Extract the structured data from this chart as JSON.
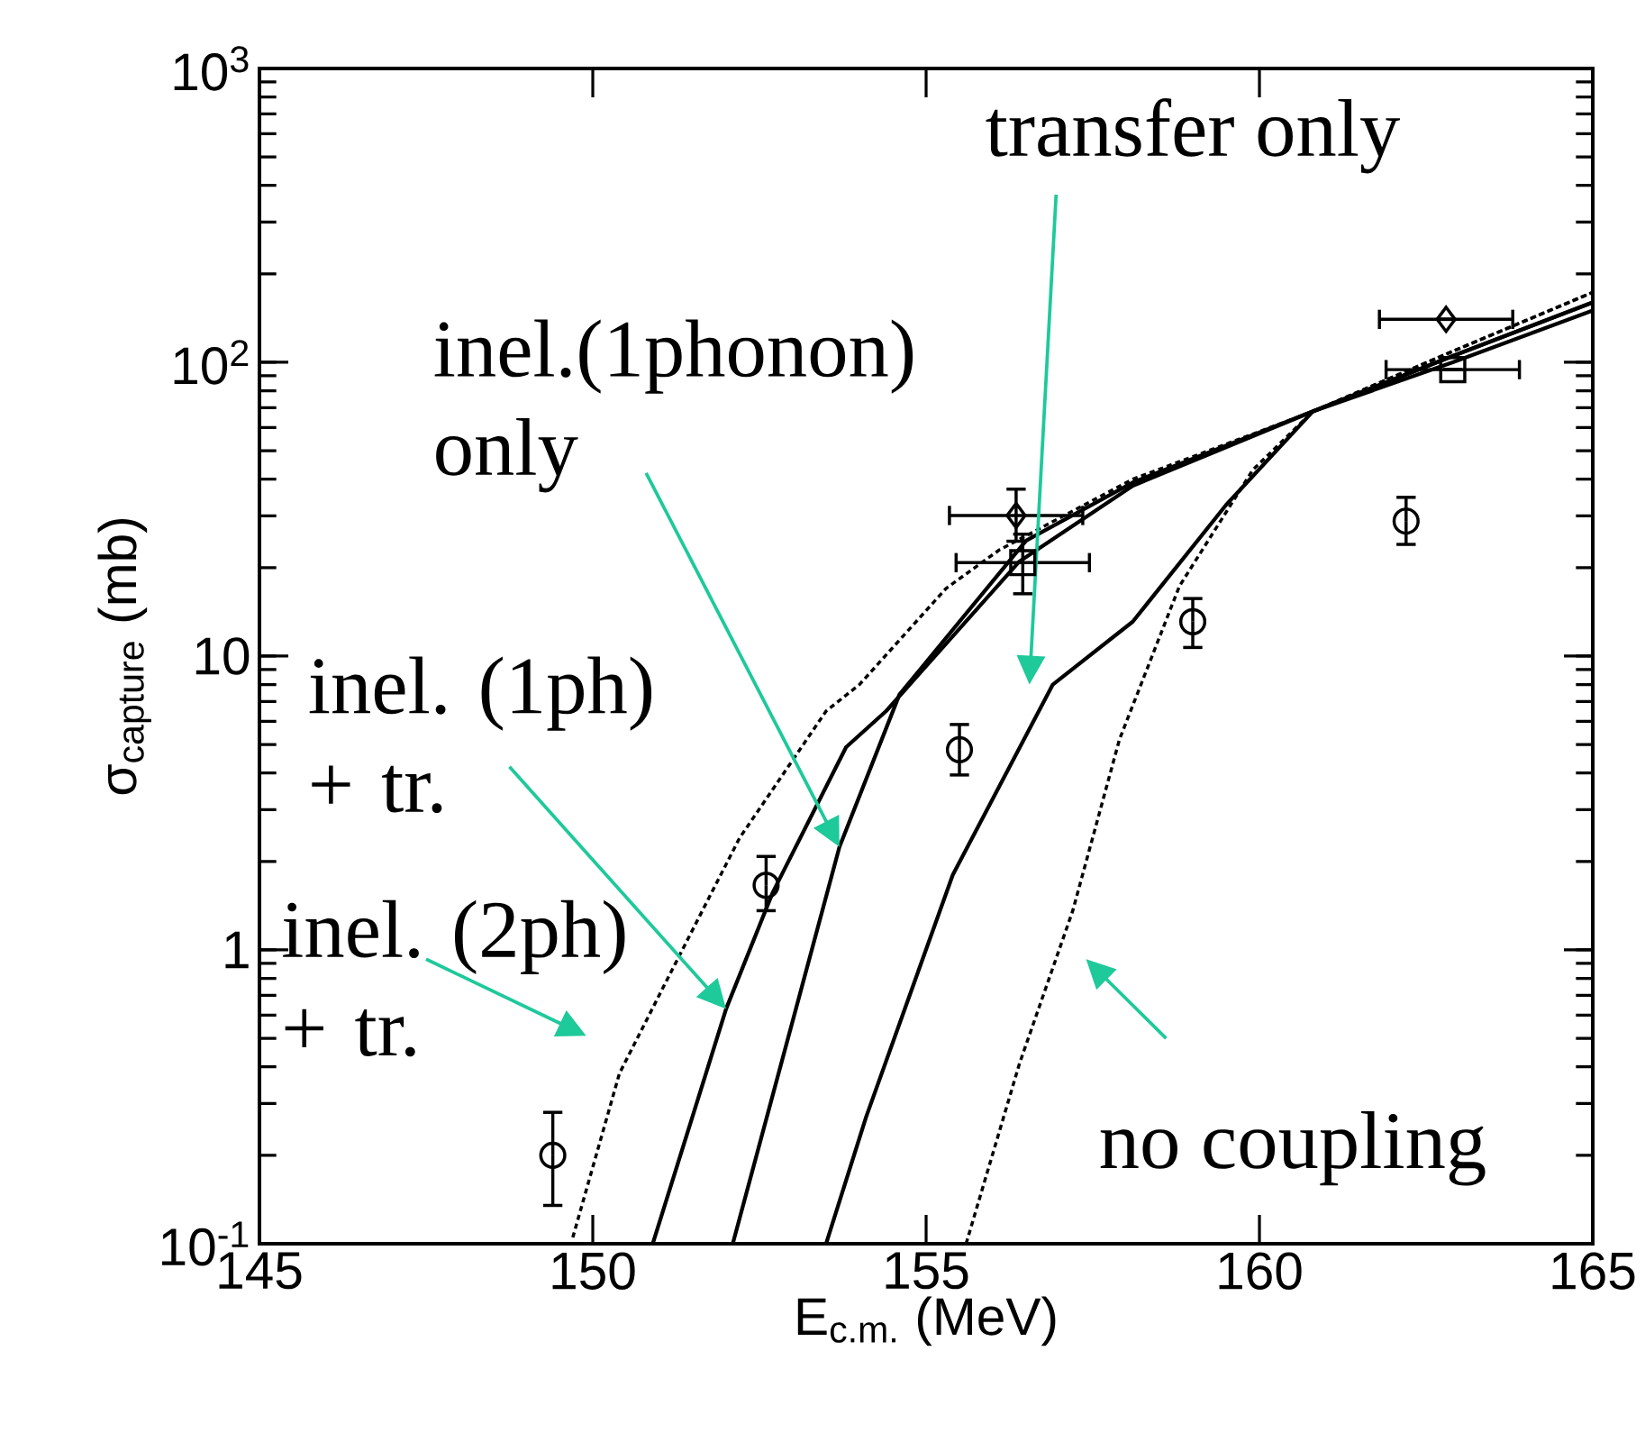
{
  "chart_data": {
    "type": "line",
    "xlabel": "E$_{c.m.}$ (MeV)",
    "ylabel": "σ$_{capture}$ (mb)",
    "xlim": [
      145,
      165
    ],
    "ylim": [
      0.1,
      1000
    ],
    "log": true,
    "xticks": [
      145,
      150,
      155,
      160,
      165
    ],
    "yticks": [
      {
        "value": 0.1,
        "label": "10$^{-1}$"
      },
      {
        "value": 1,
        "label": "1"
      },
      {
        "value": 10,
        "label": "10"
      },
      {
        "value": 100,
        "label": "10$^{2}$"
      },
      {
        "value": 1000,
        "label": "10$^{3}$"
      }
    ],
    "grid": false,
    "series": [
      {
        "type": "scatter",
        "marker": "circle",
        "color": "#000000",
        "x": [
          149.4,
          152.6,
          155.5,
          159.0,
          162.2
        ],
        "values": [
          0.2,
          1.66,
          4.8,
          13.1,
          28.8
        ],
        "errors": [
          [
            0.135,
            0.28
          ],
          [
            1.36,
            2.08
          ],
          [
            3.94,
            5.85
          ],
          [
            10.7,
            15.7
          ],
          [
            24,
            34.7
          ]
        ]
      },
      {
        "type": "scatter",
        "marker": "diamond",
        "color": "#000000",
        "x": [
          156.35,
          162.8
        ],
        "values": [
          30.1,
          140
        ],
        "errors": [
          [
            24.6,
            37
          ],
          null
        ],
        "xerrors": [
          1.0,
          1.0
        ]
      },
      {
        "type": "scatter",
        "marker": "square",
        "color": "#000000",
        "x": [
          156.45,
          162.9
        ],
        "values": [
          20.8,
          94.4
        ],
        "errors": [
          [
            16.3,
            26
          ],
          null
        ],
        "xerrors": [
          1.0,
          1.0
        ]
      },
      {
        "line_style": "dashed",
        "color": "#000000",
        "x": [
          149.7,
          150.4,
          151.1,
          152.2,
          153.5,
          154.0,
          155.3,
          156.1,
          158.1,
          160.8,
          162.9,
          165
        ],
        "values": [
          0.105,
          0.38,
          0.78,
          2.4,
          6.5,
          8.0,
          17,
          23,
          40,
          68,
          109,
          173
        ]
      },
      {
        "line_style": "solid",
        "color": "#000000",
        "x": [
          150.9,
          152.0,
          152.7,
          153.8,
          154.4,
          156.4,
          158.1,
          160.8,
          162.9,
          165
        ],
        "values": [
          0.1,
          0.63,
          1.57,
          4.9,
          6.5,
          21,
          38,
          68,
          105,
          160
        ]
      },
      {
        "line_style": "solid",
        "color": "#000000",
        "x": [
          152.1,
          153.7,
          154.6,
          156.5,
          158.1,
          160.8,
          162.9,
          165
        ],
        "values": [
          0.1,
          2.24,
          7.4,
          24.7,
          39,
          68,
          105,
          160
        ]
      },
      {
        "line_style": "solid",
        "color": "#000000",
        "x": [
          153.5,
          154.1,
          155.4,
          156.9,
          158.1,
          159.5,
          160.8,
          162.9,
          165
        ],
        "values": [
          0.1,
          0.27,
          1.8,
          8.0,
          13.1,
          32.7,
          68,
          100,
          150
        ]
      },
      {
        "line_style": "dashed",
        "color": "#000000",
        "x": [
          155.6,
          156.4,
          157.2,
          157.9,
          158.8,
          159.9,
          160.8,
          162.9,
          165
        ],
        "values": [
          0.1,
          0.41,
          1.36,
          5.2,
          17.3,
          43,
          68,
          109,
          173
        ]
      }
    ],
    "annotations": [
      "transfer only",
      "inel.(1phonon) only",
      {
        "text": "inel. (1ph) + tr.",
        "x": 152.0,
        "y": 0.63
      },
      "inel. (2ph) + tr.",
      "no coupling"
    ]
  }
}
